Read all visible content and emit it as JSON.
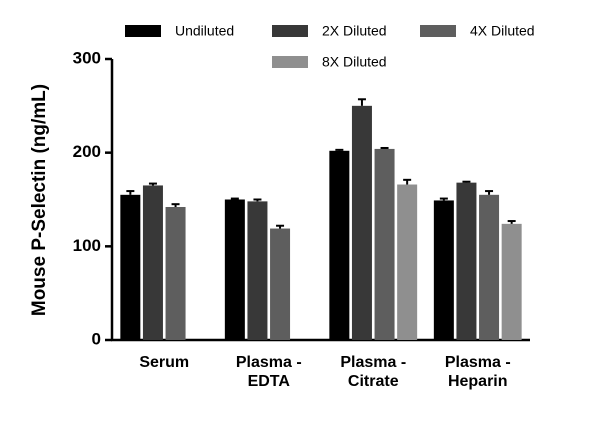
{
  "chart_data": {
    "type": "bar",
    "y_label": "Mouse P-Selectin (ng/mL)",
    "categories": [
      "Serum",
      "Plasma -\nEDTA",
      "Plasma -\nCitrate",
      "Plasma -\nHeparin"
    ],
    "series": [
      {
        "name": "Undiluted",
        "color": "#000000",
        "values": [
          155,
          150,
          202,
          149
        ],
        "errors": [
          4,
          1,
          1,
          2
        ]
      },
      {
        "name": "2X Diluted",
        "color": "#383838",
        "values": [
          165,
          148,
          250,
          168
        ],
        "errors": [
          2,
          2,
          7,
          1
        ]
      },
      {
        "name": "4X Diluted",
        "color": "#5e5e5e",
        "values": [
          142,
          119,
          204,
          155
        ],
        "errors": [
          3,
          3,
          1,
          4
        ]
      },
      {
        "name": "8X Diluted",
        "color": "#8f8f8f",
        "values": [
          null,
          null,
          166,
          124
        ],
        "errors": [
          null,
          null,
          5,
          3
        ]
      }
    ],
    "ylim": [
      0,
      300
    ],
    "yticks": [
      0,
      100,
      200,
      300
    ],
    "grid": false
  }
}
